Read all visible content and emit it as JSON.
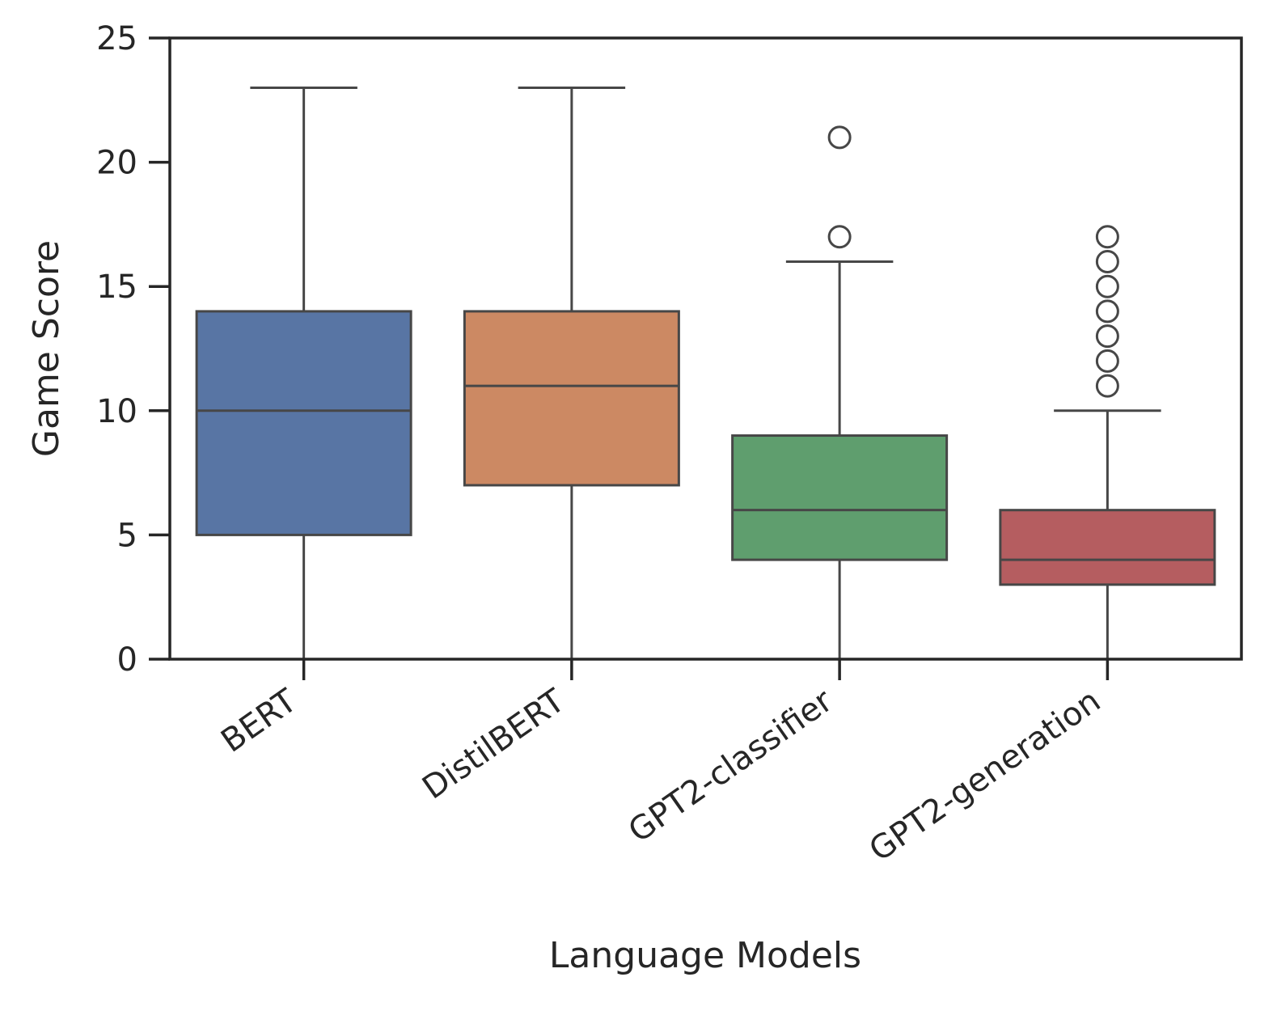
{
  "chart_data": {
    "type": "box",
    "xlabel": "Language Models",
    "ylabel": "Game Score",
    "ylim": [
      0,
      25
    ],
    "yticks": [
      0,
      5,
      10,
      15,
      20,
      25
    ],
    "grid": false,
    "categories": [
      "BERT",
      "DistilBERT",
      "GPT2-classifier",
      "GPT2-generation"
    ],
    "colors": [
      "#5875a4",
      "#cc8963",
      "#5f9e6e",
      "#b55d60"
    ],
    "boxes": [
      {
        "category": "BERT",
        "whisker_low": 0,
        "q1": 5,
        "median": 10,
        "q3": 14,
        "whisker_high": 23,
        "outliers": []
      },
      {
        "category": "DistilBERT",
        "whisker_low": 0,
        "q1": 7,
        "median": 11,
        "q3": 14,
        "whisker_high": 23,
        "outliers": []
      },
      {
        "category": "GPT2-classifier",
        "whisker_low": 0,
        "q1": 4,
        "median": 6,
        "q3": 9,
        "whisker_high": 16,
        "outliers": [
          17,
          21
        ]
      },
      {
        "category": "GPT2-generation",
        "whisker_low": 0,
        "q1": 3,
        "median": 4,
        "q3": 6,
        "whisker_high": 10,
        "outliers": [
          11,
          12,
          13,
          14,
          15,
          16,
          17
        ]
      }
    ]
  }
}
